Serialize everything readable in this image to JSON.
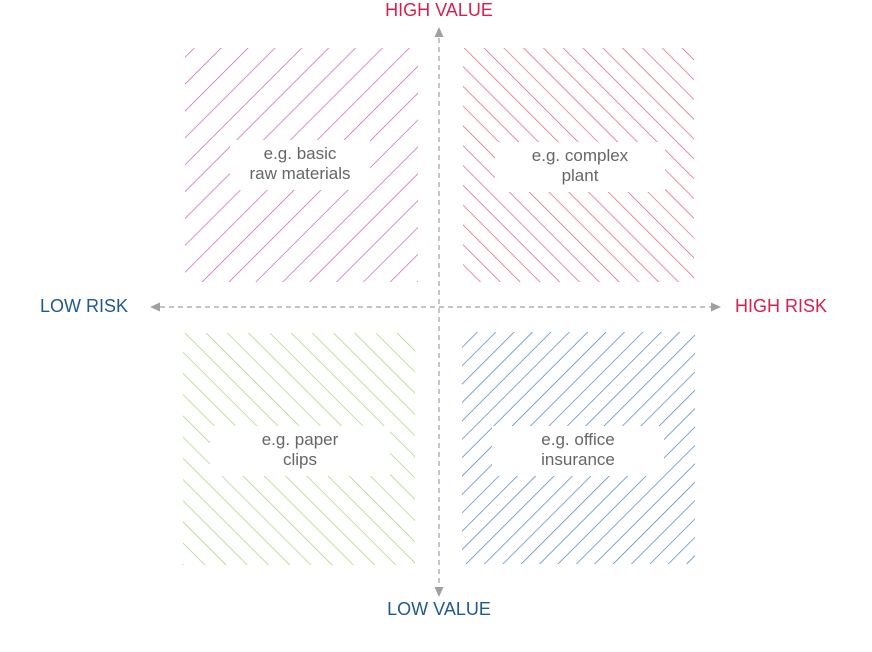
{
  "axes": {
    "top": {
      "text": "HIGH VALUE",
      "color": "#d6204f"
    },
    "bottom": {
      "text": "LOW VALUE",
      "color": "#1f5a8c"
    },
    "left": {
      "text": "LOW RISK",
      "color": "#1f5a8c"
    },
    "right": {
      "text": "HIGH RISK",
      "color": "#d6204f"
    }
  },
  "axis_line_color": "#a0a0a0",
  "quadrants": {
    "top_left": {
      "lines": [
        "e.g. basic",
        "raw materials"
      ],
      "hatch_color": "#c94fb0"
    },
    "top_right": {
      "lines": [
        "e.g. complex",
        "plant"
      ],
      "hatch_color": "#e0506e"
    },
    "bottom_left": {
      "lines": [
        "e.g. paper",
        "clips"
      ],
      "hatch_color": "#9ed06a"
    },
    "bottom_right": {
      "lines": [
        "e.g. office",
        "insurance"
      ],
      "hatch_color": "#3a78c0"
    }
  }
}
